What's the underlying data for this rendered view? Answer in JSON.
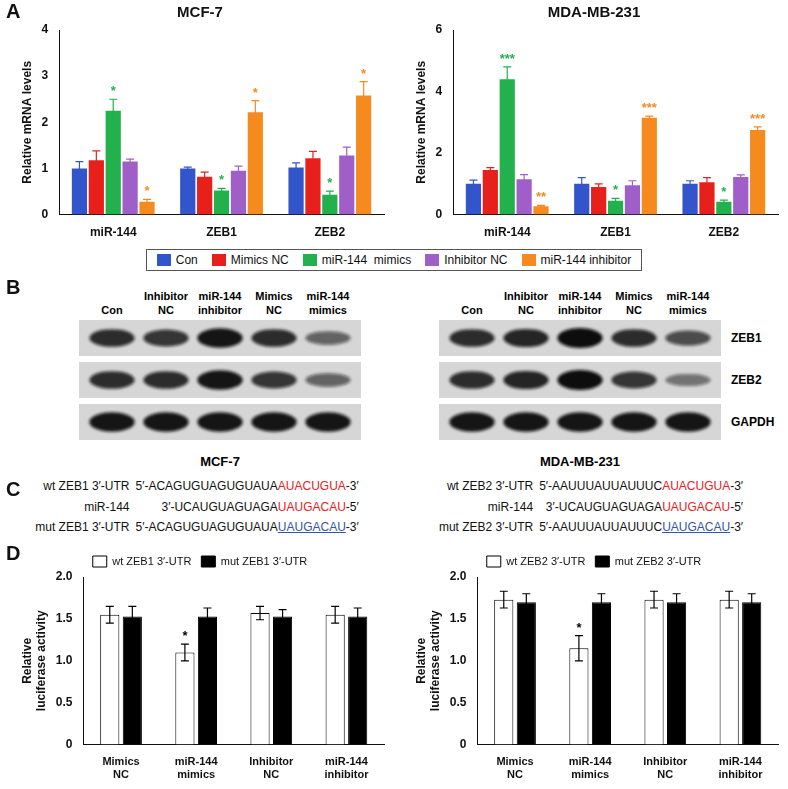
{
  "panel_labels": [
    "A",
    "B",
    "C",
    "D"
  ],
  "chart_data": [
    {
      "type": "bar",
      "title": "MCF-7",
      "ylabel": "Relative mRNA levels",
      "categories": [
        "miR-144",
        "ZEB1",
        "ZEB2"
      ],
      "ylim": [
        0,
        4
      ],
      "yticks": [
        0,
        1,
        2,
        3,
        4
      ],
      "grid": false,
      "legend": "bottom",
      "series": [
        {
          "name": "Con",
          "color": "#3355cc",
          "values": [
            1.0,
            1.0,
            1.02
          ],
          "errors": [
            0.15,
            0.03,
            0.1
          ],
          "significance": [
            null,
            null,
            null
          ]
        },
        {
          "name": "Mimics NC",
          "color": "#e8201c",
          "values": [
            1.18,
            0.82,
            1.22
          ],
          "errors": [
            0.2,
            0.1,
            0.15
          ],
          "significance": [
            null,
            null,
            null
          ]
        },
        {
          "name": "miR-144  mimics",
          "color": "#22b14c",
          "values": [
            2.25,
            0.52,
            0.43
          ],
          "errors": [
            0.25,
            0.05,
            0.08
          ],
          "significance": [
            "*",
            "*",
            "*"
          ]
        },
        {
          "name": "Inhibitor NC",
          "color": "#a05fc8",
          "values": [
            1.15,
            0.95,
            1.28
          ],
          "errors": [
            0.05,
            0.1,
            0.18
          ],
          "significance": [
            null,
            null,
            null
          ]
        },
        {
          "name": "miR-144 inhibitor",
          "color": "#f58b1f",
          "values": [
            0.28,
            2.22,
            2.58
          ],
          "errors": [
            0.05,
            0.25,
            0.3
          ],
          "significance": [
            "*",
            "*",
            "*"
          ]
        }
      ]
    },
    {
      "type": "bar",
      "title": "MDA-MB-231",
      "ylabel": "Relative mRNA levels",
      "categories": [
        "miR-144",
        "ZEB1",
        "ZEB2"
      ],
      "ylim": [
        0,
        6
      ],
      "yticks": [
        0,
        2,
        4,
        6
      ],
      "grid": false,
      "legend": "bottom",
      "series": [
        {
          "name": "Con",
          "color": "#3355cc",
          "values": [
            1.0,
            1.0,
            1.0
          ],
          "errors": [
            0.12,
            0.2,
            0.1
          ],
          "significance": [
            null,
            null,
            null
          ]
        },
        {
          "name": "Mimics NC",
          "color": "#e8201c",
          "values": [
            1.45,
            0.9,
            1.05
          ],
          "errors": [
            0.08,
            0.1,
            0.15
          ],
          "significance": [
            null,
            null,
            null
          ]
        },
        {
          "name": "miR-144  mimics",
          "color": "#22b14c",
          "values": [
            4.4,
            0.45,
            0.42
          ],
          "errors": [
            0.4,
            0.08,
            0.05
          ],
          "significance": [
            "***",
            "*",
            "*"
          ]
        },
        {
          "name": "Inhibitor NC",
          "color": "#a05fc8",
          "values": [
            1.15,
            0.95,
            1.22
          ],
          "errors": [
            0.15,
            0.15,
            0.07
          ],
          "significance": [
            null,
            null,
            null
          ]
        },
        {
          "name": "miR-144 inhibitor",
          "color": "#f58b1f",
          "values": [
            0.27,
            3.15,
            2.75
          ],
          "errors": [
            0.03,
            0.05,
            0.1
          ],
          "significance": [
            "**",
            "***",
            "***"
          ]
        }
      ]
    },
    {
      "type": "bar",
      "ylabel": "Relative luciferase activity",
      "categories": [
        "Mimics NC",
        "miR-144 mimics",
        "Inhibitor NC",
        "miR-144 inhibitor"
      ],
      "ylim": [
        0,
        2
      ],
      "yticks": [
        0,
        0.5,
        {
          "value": 1,
          "label": "1.0"
        },
        1.5,
        {
          "value": 2,
          "label": "2.0"
        }
      ],
      "grid": false,
      "legend": "top",
      "series": [
        {
          "name": "wt ZEB1 3′-UTR",
          "color": "#ffffff",
          "values": [
            1.55,
            1.1,
            1.57,
            1.55
          ],
          "errors": [
            0.1,
            0.1,
            0.08,
            0.1
          ],
          "significance": [
            null,
            "*",
            null,
            null
          ]
        },
        {
          "name": "mut ZEB1 3′-UTR",
          "color": "#000000",
          "values": [
            1.53,
            1.53,
            1.53,
            1.53
          ],
          "errors": [
            0.12,
            0.1,
            0.08,
            0.1
          ],
          "significance": [
            null,
            null,
            null,
            null
          ]
        }
      ]
    },
    {
      "type": "bar",
      "ylabel": "Relative luciferase activity",
      "categories": [
        "Mimics NC",
        "miR-144 mimics",
        "Inhibitor NC",
        "miR-144 inhibitor"
      ],
      "ylim": [
        0,
        2
      ],
      "yticks": [
        0,
        0.5,
        {
          "value": 1,
          "label": "1.0"
        },
        1.5,
        {
          "value": 2,
          "label": "2.0"
        }
      ],
      "grid": false,
      "legend": "top",
      "series": [
        {
          "name": "wt ZEB2 3′-UTR",
          "color": "#ffffff",
          "values": [
            1.73,
            1.15,
            1.73,
            1.73
          ],
          "errors": [
            0.1,
            0.15,
            0.1,
            0.1
          ],
          "significance": [
            null,
            "*",
            null,
            null
          ]
        },
        {
          "name": "mut ZEB2 3′-UTR",
          "color": "#000000",
          "values": [
            1.7,
            1.7,
            1.7,
            1.7
          ],
          "errors": [
            0.1,
            0.1,
            0.1,
            0.1
          ],
          "significance": [
            null,
            null,
            null,
            null
          ]
        }
      ]
    }
  ],
  "blots": {
    "proteins": [
      "ZEB1",
      "ZEB2",
      "GAPDH"
    ],
    "panels": [
      {
        "cell_line": "MCF-7",
        "lanes": [
          "Con",
          "Inhibitor NC",
          "miR-144 inhibitor",
          "Mimics NC",
          "miR-144 mimics"
        ],
        "intensity": [
          [
            0.8,
            0.75,
            0.95,
            0.8,
            0.45
          ],
          [
            0.8,
            0.8,
            0.95,
            0.75,
            0.45
          ],
          [
            0.95,
            0.95,
            0.95,
            0.95,
            0.95
          ]
        ]
      },
      {
        "cell_line": "MDA-MB-231",
        "lanes": [
          "Con",
          "Inhibitor NC",
          "miR-144 inhibitor",
          "Mimics NC",
          "miR-144 mimics"
        ],
        "intensity": [
          [
            0.8,
            0.85,
            1.0,
            0.8,
            0.6
          ],
          [
            0.8,
            0.85,
            1.0,
            0.75,
            0.35
          ],
          [
            0.95,
            0.95,
            0.95,
            0.95,
            0.95
          ]
        ]
      }
    ]
  },
  "sequences": [
    {
      "rows": [
        {
          "label": "wt ZEB1 3′-UTR",
          "prefix": "5′-ACAGUGUAGUGUAUA",
          "site": "AUACUGUA",
          "suffix": "-3′",
          "color": "#e8201c"
        },
        {
          "label": "miR-144",
          "prefix": "3′-UCAUGUAGUAGA",
          "site": "UAUGACAU",
          "suffix": "-5′",
          "color": "#e8201c"
        },
        {
          "label": "mut ZEB1 3′-UTR",
          "prefix": "5′-ACAGUGUAGUGUAUA",
          "site": "UAUGACAU",
          "suffix": "-3′",
          "color": "#3355aa",
          "line_style": "underline"
        }
      ]
    },
    {
      "rows": [
        {
          "label": "wt ZEB2 3′-UTR",
          "prefix": "5′-AAUUUAUUAUUUC",
          "site": "AUACUGUA",
          "suffix": "-3′",
          "color": "#e8201c"
        },
        {
          "label": "miR-144",
          "prefix": "3′-UCAUGUAGUAGA",
          "site": "UAUGACAU",
          "suffix": "-5′",
          "color": "#e8201c"
        },
        {
          "label": "mut ZEB2 3′-UTR",
          "prefix": "5′-AAUUUAUUAUUUC",
          "site": "UAUGACAU",
          "suffix": "-3′",
          "color": "#3355aa",
          "line_style": "underline"
        }
      ]
    }
  ]
}
